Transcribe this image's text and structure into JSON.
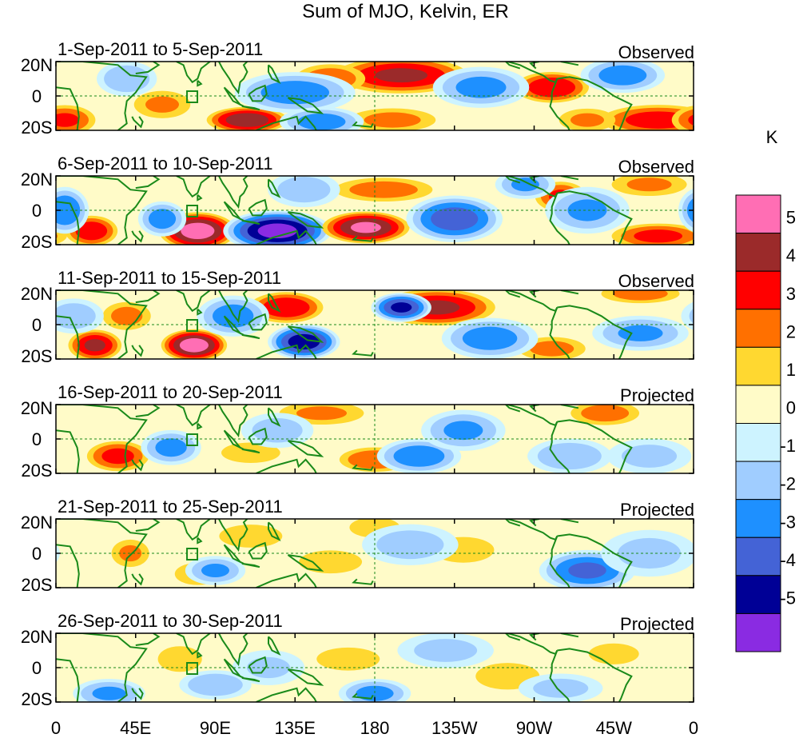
{
  "title": "Sum of MJO, Kelvin, ER",
  "chart_data": {
    "type": "heatmap",
    "title": "Sum of MJO, Kelvin, ER",
    "units": "K",
    "lat_ticks": [
      "20N",
      "0",
      "20S"
    ],
    "lon_ticks": [
      "0",
      "45E",
      "90E",
      "135E",
      "180",
      "135W",
      "90W",
      "45W",
      "0"
    ],
    "lat_range": [
      -20,
      20
    ],
    "lon_range": [
      0,
      360
    ],
    "colorbar": {
      "levels": [
        "5",
        "4",
        "3",
        "2",
        "1",
        "0",
        "-1",
        "-2",
        "-3",
        "-4",
        "-5"
      ],
      "colors": [
        "#ff6eb4",
        "#9b2a2a",
        "#ff0000",
        "#ff7000",
        "#ffd830",
        "#fffbc8",
        "#cdf3ff",
        "#a0cdff",
        "#1e90ff",
        "#4463d6",
        "#000096",
        "#8a2be2"
      ]
    },
    "panels": [
      {
        "date": "1-Sep-2011 to 5-Sep-2011",
        "status": "Observed",
        "anomalies": [
          {
            "lon": 195,
            "lat": 12,
            "value": 4.2,
            "sx": 25,
            "sy": 7
          },
          {
            "lon": 280,
            "lat": 5,
            "value": 4.0,
            "sx": 14,
            "sy": 6
          },
          {
            "lon": 155,
            "lat": 10,
            "value": 2.8,
            "sx": 14,
            "sy": 6
          },
          {
            "lon": 60,
            "lat": -5,
            "value": 2.2,
            "sx": 12,
            "sy": 6
          },
          {
            "lon": 108,
            "lat": -14,
            "value": 4.8,
            "sx": 15,
            "sy": 5
          },
          {
            "lon": 340,
            "lat": -14,
            "value": 3.6,
            "sx": 22,
            "sy": 6
          },
          {
            "lon": 5,
            "lat": -14,
            "value": 3.2,
            "sx": 12,
            "sy": 6
          },
          {
            "lon": 190,
            "lat": -14,
            "value": 2.4,
            "sx": 18,
            "sy": 5
          },
          {
            "lon": 300,
            "lat": -14,
            "value": 2.2,
            "sx": 12,
            "sy": 5
          },
          {
            "lon": 135,
            "lat": 2,
            "value": -2.6,
            "sx": 20,
            "sy": 7
          },
          {
            "lon": 240,
            "lat": 5,
            "value": -2.4,
            "sx": 16,
            "sy": 7
          },
          {
            "lon": 320,
            "lat": 12,
            "value": -2.6,
            "sx": 14,
            "sy": 6
          },
          {
            "lon": 40,
            "lat": 10,
            "value": -2.0,
            "sx": 10,
            "sy": 6
          },
          {
            "lon": 150,
            "lat": -15,
            "value": -2.6,
            "sx": 14,
            "sy": 5
          }
        ]
      },
      {
        "date": "6-Sep-2011 to 10-Sep-2011",
        "status": "Observed",
        "anomalies": [
          {
            "lon": 80,
            "lat": -12,
            "value": 5.6,
            "sx": 14,
            "sy": 7
          },
          {
            "lon": 125,
            "lat": -12,
            "value": -5.4,
            "sx": 18,
            "sy": 7
          },
          {
            "lon": 175,
            "lat": -10,
            "value": 5.2,
            "sx": 16,
            "sy": 6
          },
          {
            "lon": 20,
            "lat": -12,
            "value": 3.8,
            "sx": 10,
            "sy": 6
          },
          {
            "lon": 340,
            "lat": -15,
            "value": 3.4,
            "sx": 18,
            "sy": 5
          },
          {
            "lon": 285,
            "lat": 8,
            "value": 3.2,
            "sx": 10,
            "sy": 6
          },
          {
            "lon": 185,
            "lat": 12,
            "value": 2.6,
            "sx": 20,
            "sy": 5
          },
          {
            "lon": 335,
            "lat": 15,
            "value": 2.2,
            "sx": 16,
            "sy": 5
          },
          {
            "lon": 225,
            "lat": -5,
            "value": -3.6,
            "sx": 16,
            "sy": 8
          },
          {
            "lon": 300,
            "lat": 0,
            "value": -2.2,
            "sx": 14,
            "sy": 8
          },
          {
            "lon": 5,
            "lat": 0,
            "value": -3.0,
            "sx": 8,
            "sy": 8
          },
          {
            "lon": 60,
            "lat": -5,
            "value": -2.6,
            "sx": 8,
            "sy": 6
          },
          {
            "lon": 140,
            "lat": 12,
            "value": -1.8,
            "sx": 12,
            "sy": 6
          },
          {
            "lon": 265,
            "lat": 15,
            "value": -2.2,
            "sx": 10,
            "sy": 5
          }
        ]
      },
      {
        "date": "11-Sep-2011 to 15-Sep-2011",
        "status": "Observed",
        "anomalies": [
          {
            "lon": 78,
            "lat": -12,
            "value": 5.6,
            "sx": 12,
            "sy": 6
          },
          {
            "lon": 22,
            "lat": -12,
            "value": 4.2,
            "sx": 10,
            "sy": 6
          },
          {
            "lon": 130,
            "lat": 10,
            "value": 4.0,
            "sx": 14,
            "sy": 6
          },
          {
            "lon": 215,
            "lat": 10,
            "value": 4.2,
            "sx": 22,
            "sy": 7
          },
          {
            "lon": 330,
            "lat": 18,
            "value": 2.6,
            "sx": 16,
            "sy": 4
          },
          {
            "lon": 40,
            "lat": 5,
            "value": 2.4,
            "sx": 10,
            "sy": 6
          },
          {
            "lon": 280,
            "lat": -14,
            "value": 2.4,
            "sx": 14,
            "sy": 5
          },
          {
            "lon": 140,
            "lat": -10,
            "value": -4.6,
            "sx": 12,
            "sy": 6
          },
          {
            "lon": 195,
            "lat": 10,
            "value": -4.2,
            "sx": 10,
            "sy": 5
          },
          {
            "lon": 100,
            "lat": 5,
            "value": -2.6,
            "sx": 12,
            "sy": 7
          },
          {
            "lon": 245,
            "lat": -8,
            "value": -2.6,
            "sx": 16,
            "sy": 7
          },
          {
            "lon": 330,
            "lat": -5,
            "value": -2.2,
            "sx": 16,
            "sy": 6
          },
          {
            "lon": 10,
            "lat": 5,
            "value": -1.8,
            "sx": 10,
            "sy": 6
          }
        ]
      },
      {
        "date": "16-Sep-2011 to 20-Sep-2011",
        "status": "Projected",
        "anomalies": [
          {
            "lon": 35,
            "lat": -10,
            "value": 3.4,
            "sx": 12,
            "sy": 6
          },
          {
            "lon": 180,
            "lat": -12,
            "value": 3.0,
            "sx": 14,
            "sy": 5
          },
          {
            "lon": 310,
            "lat": 15,
            "value": 2.6,
            "sx": 14,
            "sy": 5
          },
          {
            "lon": 150,
            "lat": 15,
            "value": 2.2,
            "sx": 18,
            "sy": 5
          },
          {
            "lon": 110,
            "lat": -8,
            "value": 1.6,
            "sx": 14,
            "sy": 5
          },
          {
            "lon": 65,
            "lat": -5,
            "value": -2.4,
            "sx": 10,
            "sy": 6
          },
          {
            "lon": 205,
            "lat": -10,
            "value": -2.8,
            "sx": 14,
            "sy": 6
          },
          {
            "lon": 230,
            "lat": 5,
            "value": -2.2,
            "sx": 14,
            "sy": 7
          },
          {
            "lon": 290,
            "lat": -10,
            "value": -2.0,
            "sx": 14,
            "sy": 6
          },
          {
            "lon": 125,
            "lat": 5,
            "value": -1.6,
            "sx": 12,
            "sy": 6
          },
          {
            "lon": 335,
            "lat": -10,
            "value": -1.4,
            "sx": 14,
            "sy": 6
          }
        ]
      },
      {
        "date": "21-Sep-2011 to 25-Sep-2011",
        "status": "Projected",
        "anomalies": [
          {
            "lon": 42,
            "lat": 0,
            "value": 2.2,
            "sx": 8,
            "sy": 6
          },
          {
            "lon": 80,
            "lat": -12,
            "value": 2.0,
            "sx": 10,
            "sy": 5
          },
          {
            "lon": 110,
            "lat": 10,
            "value": 1.4,
            "sx": 16,
            "sy": 6
          },
          {
            "lon": 155,
            "lat": -5,
            "value": 1.4,
            "sx": 16,
            "sy": 6
          },
          {
            "lon": 180,
            "lat": 15,
            "value": 1.6,
            "sx": 12,
            "sy": 5
          },
          {
            "lon": 230,
            "lat": 2,
            "value": 1.8,
            "sx": 14,
            "sy": 6
          },
          {
            "lon": 300,
            "lat": -10,
            "value": -3.2,
            "sx": 16,
            "sy": 7
          },
          {
            "lon": 90,
            "lat": -10,
            "value": -2.2,
            "sx": 10,
            "sy": 5
          },
          {
            "lon": 200,
            "lat": 5,
            "value": -1.6,
            "sx": 16,
            "sy": 7
          },
          {
            "lon": 335,
            "lat": 0,
            "value": -1.4,
            "sx": 16,
            "sy": 8
          }
        ]
      },
      {
        "date": "26-Sep-2011 to 30-Sep-2011",
        "status": "Projected",
        "anomalies": [
          {
            "lon": 70,
            "lat": 5,
            "value": 1.8,
            "sx": 10,
            "sy": 6
          },
          {
            "lon": 165,
            "lat": 5,
            "value": 1.4,
            "sx": 16,
            "sy": 6
          },
          {
            "lon": 255,
            "lat": -5,
            "value": 2.0,
            "sx": 14,
            "sy": 6
          },
          {
            "lon": 315,
            "lat": 8,
            "value": 1.2,
            "sx": 14,
            "sy": 6
          },
          {
            "lon": 180,
            "lat": -15,
            "value": -2.4,
            "sx": 12,
            "sy": 5
          },
          {
            "lon": 30,
            "lat": -15,
            "value": -2.2,
            "sx": 12,
            "sy": 5
          },
          {
            "lon": 90,
            "lat": -10,
            "value": -2.0,
            "sx": 12,
            "sy": 5
          },
          {
            "lon": 220,
            "lat": 10,
            "value": -1.4,
            "sx": 16,
            "sy": 6
          },
          {
            "lon": 120,
            "lat": 0,
            "value": -1.2,
            "sx": 12,
            "sy": 6
          },
          {
            "lon": 285,
            "lat": -12,
            "value": -1.4,
            "sx": 14,
            "sy": 5
          }
        ]
      }
    ]
  }
}
